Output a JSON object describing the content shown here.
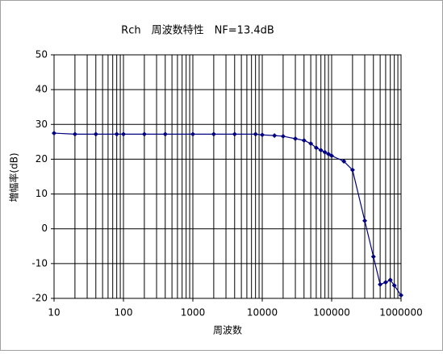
{
  "chart_data": {
    "type": "line",
    "title": "Rch　周波数特性　NF=13.4dB",
    "x_label": "周波数",
    "y_label": "増幅率(dB)",
    "log_x": true,
    "grid": true,
    "x": [
      10,
      20,
      40,
      80,
      100,
      200,
      400,
      1000,
      2000,
      4000,
      8000,
      10000,
      15000,
      20000,
      30000,
      40000,
      50000,
      60000,
      70000,
      80000,
      90000,
      100000,
      150000,
      200000,
      300000,
      400000,
      500000,
      600000,
      700000,
      800000,
      1000000
    ],
    "series": [
      {
        "name": "Rch",
        "color": "#000080",
        "values": [
          27.5,
          27.2,
          27.2,
          27.2,
          27.2,
          27.2,
          27.2,
          27.2,
          27.2,
          27.2,
          27.2,
          27.0,
          26.8,
          26.6,
          25.9,
          25.4,
          24.5,
          23.3,
          22.6,
          22.0,
          21.5,
          21.0,
          19.4,
          16.9,
          2.3,
          -8.0,
          -16.0,
          -15.4,
          -14.7,
          -16.3,
          -19.1
        ]
      }
    ],
    "xlim": [
      10,
      1000000
    ],
    "xticks": [
      10,
      100,
      1000,
      10000,
      100000,
      1000000
    ],
    "ylim": [
      -20,
      50
    ],
    "yticks": [
      -20,
      -10,
      0,
      10,
      20,
      30,
      40,
      50
    ]
  }
}
